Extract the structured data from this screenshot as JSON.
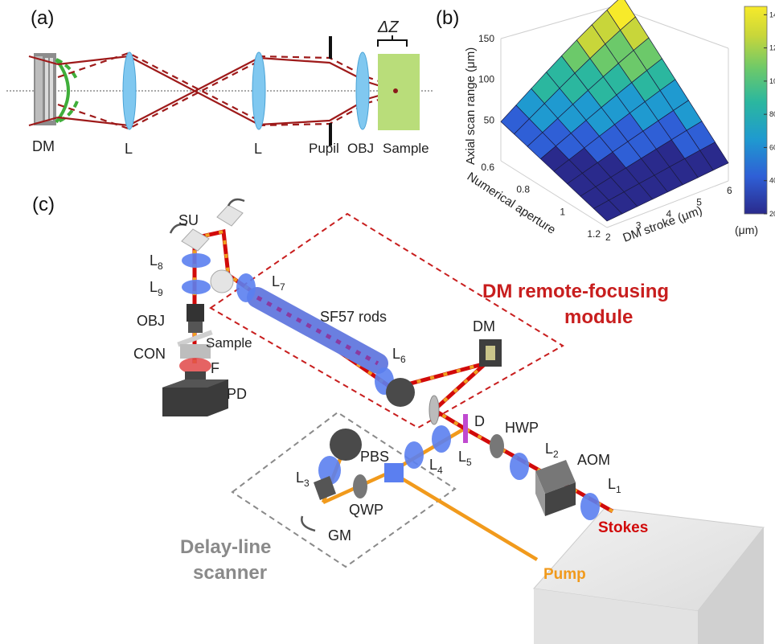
{
  "panel_a": {
    "panel_label": "(a)",
    "dz_label": "ΔZ",
    "labels": {
      "dm": "DM",
      "lens1": "L",
      "lens2": "L",
      "pupil": "Pupil",
      "obj": "OBJ",
      "sample": "Sample"
    }
  },
  "panel_b": {
    "panel_label": "(b)",
    "zlabel": "Axial scan range (μm)",
    "xlabel": "DM stroke (μm)",
    "ylabel": "Numerical aperture",
    "colorbar_unit": "(μm)"
  },
  "chart_data": {
    "type": "surface",
    "x_name": "DM stroke (μm)",
    "y_name": "Numerical aperture",
    "z_name": "Axial scan range (μm)",
    "x_ticks": [
      "2",
      "3",
      "4",
      "5",
      "6"
    ],
    "y_ticks": [
      "0.6",
      "0.8",
      "1",
      "1.2"
    ],
    "z_ticks": [
      "50",
      "100",
      "150"
    ],
    "xlim": [
      2,
      6
    ],
    "ylim": [
      0.6,
      1.2
    ],
    "zlim": [
      0,
      150
    ],
    "colorbar_ticks": [
      "20",
      "40",
      "60",
      "80",
      "100",
      "120",
      "140"
    ],
    "colorbar_range": [
      20,
      145
    ],
    "corner_values": [
      {
        "stroke": 6,
        "na": 0.6,
        "range": 145
      },
      {
        "stroke": 2,
        "na": 0.6,
        "range": 48
      },
      {
        "stroke": 6,
        "na": 1.2,
        "range": 22
      },
      {
        "stroke": 2,
        "na": 1.2,
        "range": 8
      }
    ],
    "colors": [
      "#2a2a8c",
      "#2f5fd6",
      "#1f9ad0",
      "#2bb79f",
      "#6cc96a",
      "#c8d63a",
      "#f7ea2a"
    ]
  },
  "panel_c": {
    "panel_label": "(c)",
    "labels": {
      "su": "SU",
      "l8": "L",
      "l8_sub": "8",
      "l9": "L",
      "l9_sub": "9",
      "obj": "OBJ",
      "con": "CON",
      "sample": "Sample",
      "f": "F",
      "pd": "PD",
      "l7": "L",
      "l7_sub": "7",
      "sf57": "SF57 rods",
      "l6": "L",
      "l6_sub": "6",
      "dm": "DM",
      "d": "D",
      "hwp": "HWP",
      "l2": "L",
      "l2_sub": "2",
      "aom": "AOM",
      "l1": "L",
      "l1_sub": "1",
      "stokes": "Stokes",
      "pbs": "PBS",
      "l4": "L",
      "l4_sub": "4",
      "l5": "L",
      "l5_sub": "5",
      "l3": "L",
      "l3_sub": "3",
      "qwp": "QWP",
      "gm": "GM",
      "pump": "Pump",
      "dm_module_1": "DM remote-focusing",
      "dm_module_2": "module",
      "delay_1": "Delay-line",
      "delay_2": "scanner"
    },
    "colors": {
      "stokes": "#d10a0a",
      "pump": "#f19a1c",
      "module": "#c81e1e",
      "delay": "#8a8a8a"
    }
  }
}
